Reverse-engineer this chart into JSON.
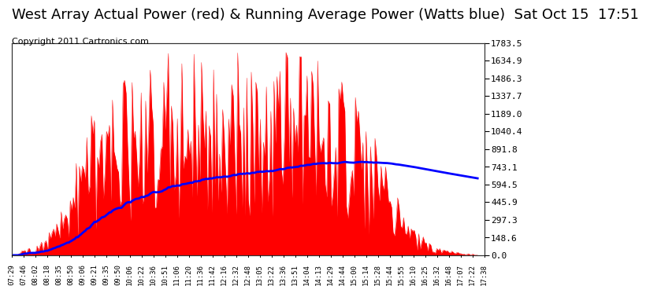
{
  "title": "West Array Actual Power (red) & Running Average Power (Watts blue)  Sat Oct 15  17:51",
  "copyright": "Copyright 2011 Cartronics.com",
  "yticks": [
    0.0,
    148.6,
    297.3,
    445.9,
    594.5,
    743.1,
    891.8,
    1040.4,
    1189.0,
    1337.7,
    1486.3,
    1634.9,
    1783.5
  ],
  "ymax": 1783.5,
  "bg_color": "#ffffff",
  "plot_bg_color": "#ffffff",
  "grid_color": "#aaaaaa",
  "bar_color": "#ff0000",
  "avg_color": "#0000ff",
  "title_fontsize": 13,
  "copyright_fontsize": 8,
  "xtick_labels": [
    "07:29",
    "07:46",
    "08:02",
    "08:18",
    "08:35",
    "08:50",
    "09:06",
    "09:21",
    "09:35",
    "09:50",
    "10:06",
    "10:22",
    "10:36",
    "10:51",
    "11:06",
    "11:20",
    "11:36",
    "11:42",
    "12:16",
    "12:32",
    "12:48",
    "13:05",
    "13:22",
    "13:36",
    "13:51",
    "14:04",
    "14:13",
    "14:29",
    "14:44",
    "15:00",
    "15:14",
    "15:28",
    "15:44",
    "15:55",
    "16:10",
    "16:25",
    "16:32",
    "16:48",
    "17:07",
    "17:22",
    "17:38"
  ]
}
